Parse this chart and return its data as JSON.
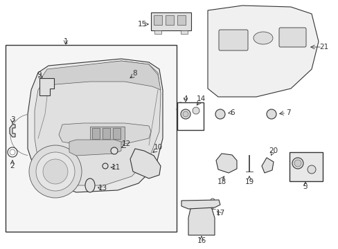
{
  "background_color": "#ffffff",
  "fig_width": 4.89,
  "fig_height": 3.6,
  "dpi": 100,
  "line_color": "#333333",
  "fill_light": "#f2f2f2",
  "fill_mid": "#e0e0e0",
  "fill_dark": "#c8c8c8"
}
